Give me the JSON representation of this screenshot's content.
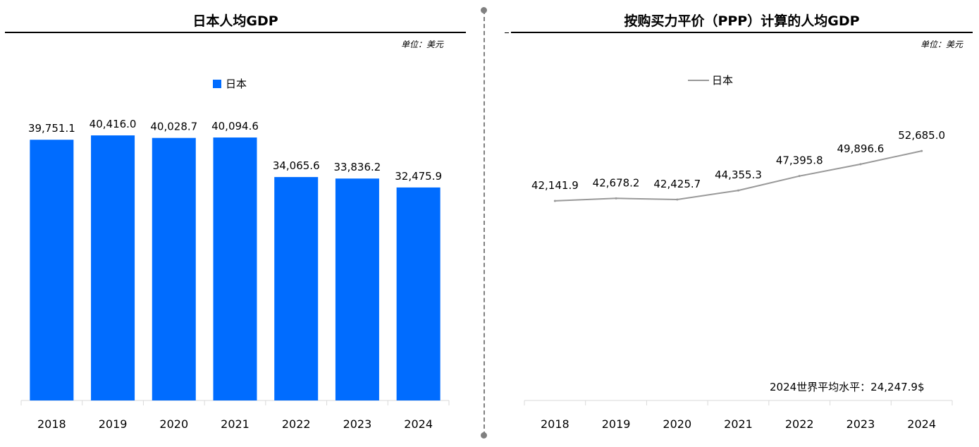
{
  "left": {
    "title": "日本人均GDP",
    "unit": "单位：美元",
    "legend": "日本"
  },
  "right": {
    "title": "按购买力平价（PPP）计算的人均GDP",
    "unit": "单位：美元",
    "legend": "日本",
    "world_average_note": "2024世界平均水平：24,247.9$"
  },
  "colors": {
    "bar": "#006cff",
    "line": "#999999",
    "axis": "#d9d9d9"
  },
  "chart_data": [
    {
      "type": "bar",
      "title": "日本人均GDP",
      "unit": "单位：美元",
      "categories": [
        "2018",
        "2019",
        "2020",
        "2021",
        "2022",
        "2023",
        "2024"
      ],
      "series": [
        {
          "name": "日本",
          "values": [
            39751.1,
            40416.0,
            40028.7,
            40094.6,
            34065.6,
            33836.2,
            32475.9
          ]
        }
      ],
      "labels": [
        "39,751.1",
        "40,416.0",
        "40,028.7",
        "40,094.6",
        "34,065.6",
        "33,836.2",
        "32,475.9"
      ],
      "ylim": [
        0,
        43000
      ],
      "grid": false,
      "legend_position": "top-center"
    },
    {
      "type": "line",
      "title": "按购买力平价（PPP）计算的人均GDP",
      "unit": "单位：美元",
      "categories": [
        "2018",
        "2019",
        "2020",
        "2021",
        "2022",
        "2023",
        "2024"
      ],
      "series": [
        {
          "name": "日本",
          "values": [
            42141.9,
            42678.2,
            42425.7,
            44355.3,
            47395.8,
            49896.6,
            52685.0
          ]
        }
      ],
      "labels": [
        "42,141.9",
        "42,678.2",
        "42,425.7",
        "44,355.3",
        "47,395.8",
        "49,896.6",
        "52,685.0"
      ],
      "ylim": [
        0,
        60000
      ],
      "grid": false,
      "legend_position": "top-center",
      "annotation": "2024世界平均水平：24,247.9$"
    }
  ]
}
